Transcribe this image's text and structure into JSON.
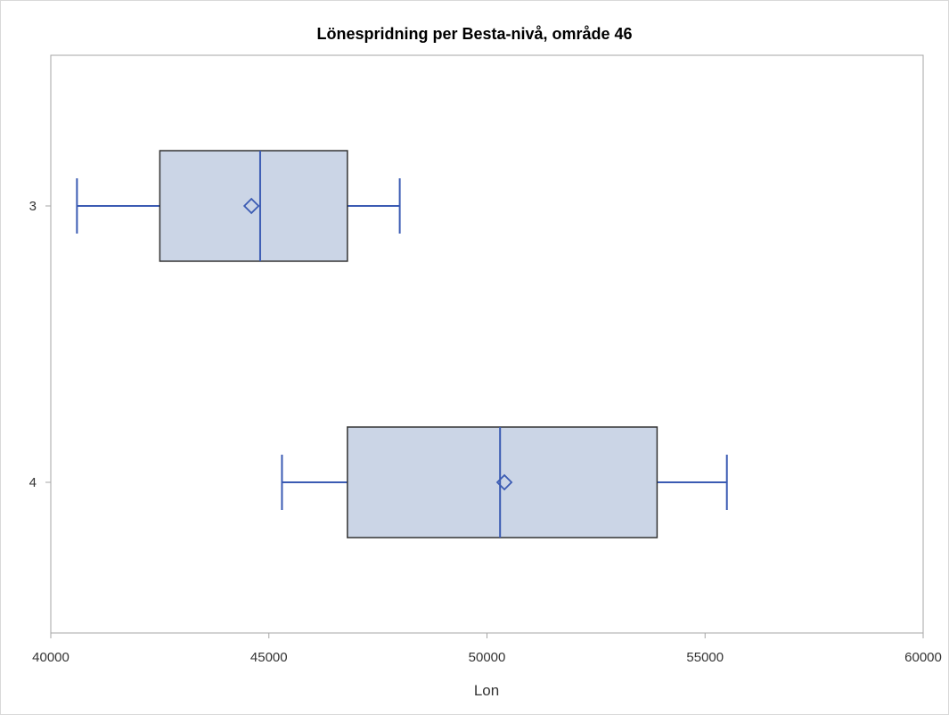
{
  "chart_data": {
    "type": "box",
    "orientation": "horizontal",
    "title": "Lönespridning per Besta-nivå, område 46",
    "xlabel": "Lon",
    "ylabel": "",
    "xlim": [
      40000,
      60000
    ],
    "xticks": [
      "40000",
      "45000",
      "50000",
      "55000",
      "60000"
    ],
    "categories": [
      "3",
      "4"
    ],
    "boxes": [
      {
        "category": "3",
        "whisker_low": 40600,
        "q1": 42500,
        "median": 44800,
        "mean": 44600,
        "q3": 46800,
        "whisker_high": 48000
      },
      {
        "category": "4",
        "whisker_low": 45300,
        "q1": 46800,
        "median": 50300,
        "mean": 50400,
        "q3": 53900,
        "whisker_high": 55500
      }
    ],
    "grid": false,
    "legend": "none",
    "colors": {
      "box_fill": "#cbd5e6",
      "box_edge": "#333333",
      "line": "#3b5bb3",
      "frame": "#a6a6a6"
    }
  }
}
